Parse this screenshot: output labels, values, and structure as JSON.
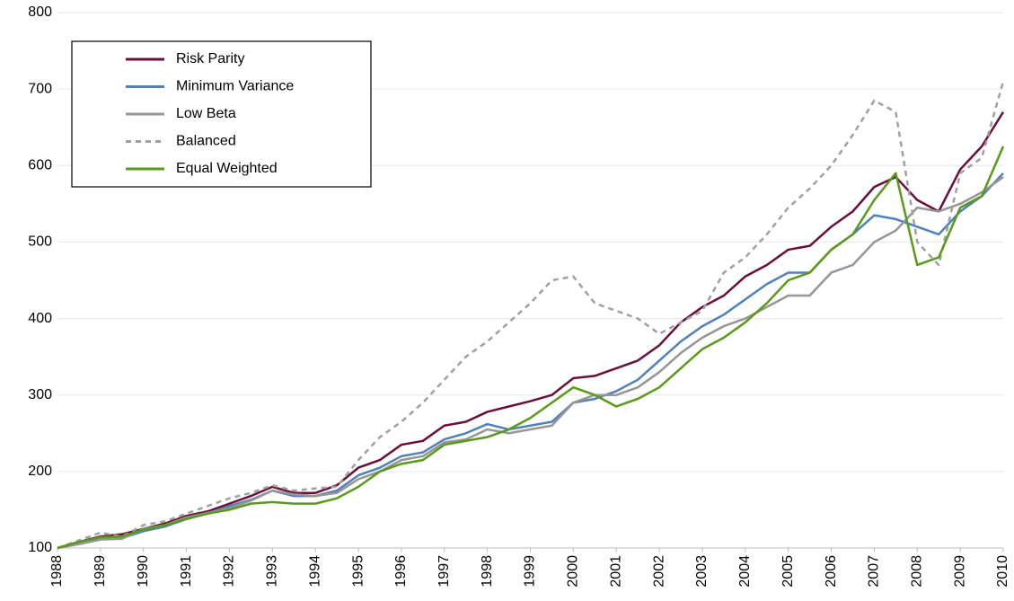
{
  "chart_data": {
    "type": "line",
    "x": [
      1988,
      1988.5,
      1989,
      1989.5,
      1990,
      1990.5,
      1991,
      1991.5,
      1992,
      1992.5,
      1993,
      1993.5,
      1994,
      1994.5,
      1995,
      1995.5,
      1996,
      1996.5,
      1997,
      1997.5,
      1998,
      1998.5,
      1999,
      1999.5,
      2000,
      2000.5,
      2001,
      2001.5,
      2002,
      2002.5,
      2003,
      2003.5,
      2004,
      2004.5,
      2005,
      2005.5,
      2006,
      2006.5,
      2007,
      2007.5,
      2008,
      2008.5,
      2009,
      2009.5,
      2010
    ],
    "series": [
      {
        "name": "Risk Parity",
        "color": "#6b0f3a",
        "style": "solid",
        "values": [
          100,
          108,
          115,
          118,
          125,
          132,
          142,
          148,
          158,
          168,
          180,
          172,
          172,
          182,
          205,
          215,
          235,
          240,
          260,
          265,
          278,
          285,
          292,
          300,
          322,
          325,
          335,
          345,
          365,
          395,
          415,
          430,
          455,
          470,
          490,
          495,
          520,
          540,
          572,
          585,
          555,
          540,
          595,
          625,
          670
        ]
      },
      {
        "name": "Minimum Variance",
        "color": "#4f81bd",
        "style": "solid",
        "values": [
          100,
          106,
          112,
          113,
          122,
          128,
          138,
          145,
          155,
          163,
          175,
          168,
          168,
          175,
          195,
          205,
          220,
          225,
          242,
          250,
          262,
          255,
          260,
          265,
          290,
          295,
          305,
          320,
          345,
          370,
          390,
          405,
          425,
          445,
          460,
          460,
          490,
          510,
          535,
          530,
          520,
          510,
          540,
          560,
          590
        ]
      },
      {
        "name": "Low Beta",
        "color": "#969696",
        "style": "solid",
        "values": [
          100,
          105,
          111,
          112,
          125,
          130,
          140,
          146,
          152,
          162,
          175,
          170,
          168,
          172,
          190,
          200,
          215,
          220,
          238,
          242,
          255,
          250,
          255,
          260,
          290,
          300,
          300,
          310,
          330,
          355,
          375,
          390,
          400,
          415,
          430,
          430,
          460,
          470,
          500,
          515,
          545,
          540,
          550,
          565,
          585
        ]
      },
      {
        "name": "Balanced",
        "color": "#a0a0a0",
        "style": "dashed",
        "values": [
          100,
          110,
          120,
          115,
          130,
          135,
          145,
          155,
          165,
          172,
          182,
          175,
          178,
          180,
          215,
          245,
          265,
          290,
          320,
          350,
          370,
          395,
          420,
          450,
          455,
          420,
          410,
          400,
          380,
          395,
          410,
          460,
          480,
          510,
          545,
          570,
          600,
          640,
          685,
          670,
          500,
          470,
          590,
          610,
          710
        ]
      },
      {
        "name": "Equal Weighted",
        "color": "#5a9a1a",
        "style": "solid",
        "values": [
          100,
          108,
          114,
          115,
          124,
          130,
          138,
          145,
          150,
          158,
          160,
          158,
          158,
          165,
          180,
          200,
          210,
          215,
          235,
          240,
          245,
          255,
          270,
          290,
          310,
          300,
          285,
          295,
          310,
          335,
          360,
          375,
          395,
          420,
          450,
          460,
          490,
          510,
          555,
          590,
          470,
          480,
          545,
          560,
          625
        ]
      }
    ],
    "xlim": [
      1988,
      2010
    ],
    "xticks": [
      1988,
      1989,
      1990,
      1991,
      1992,
      1993,
      1994,
      1995,
      1996,
      1997,
      1998,
      1999,
      2000,
      2001,
      2002,
      2003,
      2004,
      2005,
      2006,
      2007,
      2008,
      2009,
      2010
    ],
    "ylim": [
      100,
      800
    ],
    "yticks": [
      100,
      200,
      300,
      400,
      500,
      600,
      700,
      800
    ],
    "grid": true,
    "legend": "upper left"
  }
}
